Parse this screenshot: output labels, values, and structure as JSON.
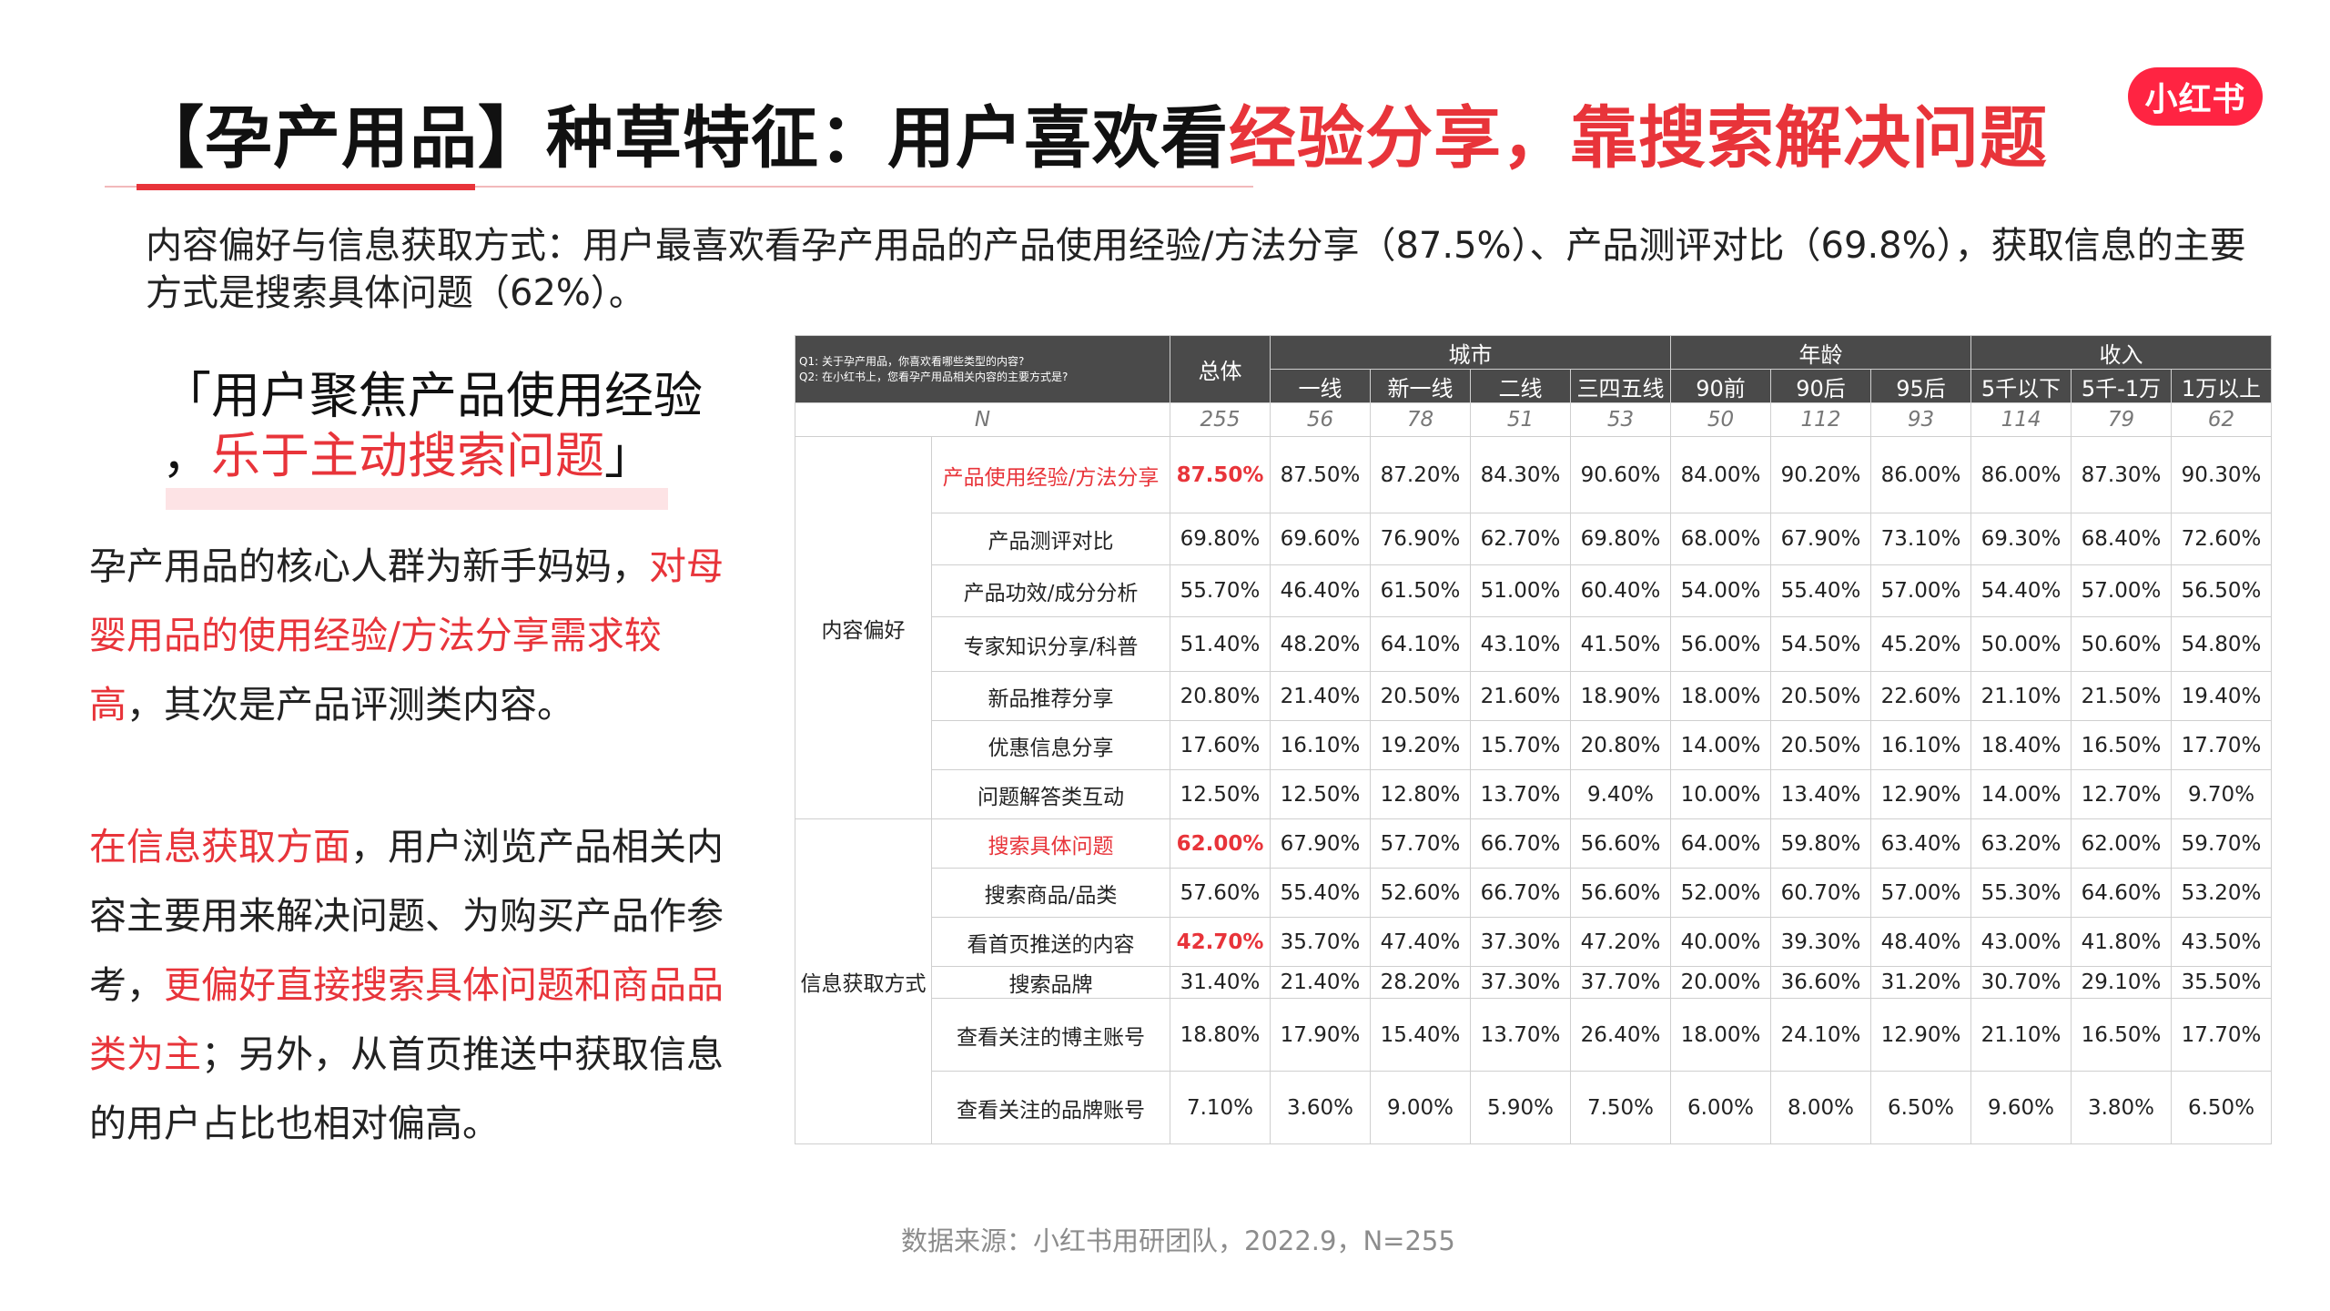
{
  "title": {
    "black": "【孕产用品】种草特征：用户喜欢看",
    "red": "经验分享，靠搜索解决问题"
  },
  "logo": "小红书",
  "summary": "内容偏好与信息获取方式：用户最喜欢看孕产用品的产品使用经验/方法分享（87.5%）、产品测评对比（69.8%），获取信息的主要方式是搜索具体问题（62%）。",
  "quote": {
    "open": "「用户聚焦产品使用经验",
    "comma": "，",
    "red": "乐于主动搜索问题",
    "close": "」"
  },
  "para1": {
    "a": "孕产用品的核心人群为新手妈妈，",
    "b": "对母婴用品的使用经验/方法分享需求较高",
    "c": "，其次是产品评测类内容。"
  },
  "para2": {
    "a": "在信息获取方面",
    "b": "，用户浏览产品相关内容主要用来解决问题、为购买产品作参考，",
    "c": "更偏好直接搜索具体问题和商品品类为主",
    "d": "；另外，从首页推送中获取信息的用户占比也相对偏高。"
  },
  "table": {
    "q1": "Q1: 关于孕产用品，你喜欢看哪些类型的内容?",
    "q2": "Q2: 在小红书上，您看孕产用品相关内容的主要方式是?",
    "total_label": "总体",
    "groups": [
      {
        "label": "城市",
        "cols": [
          "一线",
          "新一线",
          "二线",
          "三四五线"
        ]
      },
      {
        "label": "年龄",
        "cols": [
          "90前",
          "90后",
          "95后"
        ]
      },
      {
        "label": "收入",
        "cols": [
          "5千以下",
          "5千-1万",
          "1万以上"
        ]
      }
    ],
    "n_label": "N",
    "n_values": [
      "255",
      "56",
      "78",
      "51",
      "53",
      "50",
      "112",
      "93",
      "114",
      "79",
      "62"
    ],
    "categories": [
      {
        "label": "内容偏好",
        "rows": [
          {
            "item": "产品使用经验/方法分享",
            "highlight": true,
            "values": [
              "87.50%",
              "87.50%",
              "87.20%",
              "84.30%",
              "90.60%",
              "84.00%",
              "90.20%",
              "86.00%",
              "86.00%",
              "87.30%",
              "90.30%"
            ]
          },
          {
            "item": "产品测评对比",
            "highlight": false,
            "values": [
              "69.80%",
              "69.60%",
              "76.90%",
              "62.70%",
              "69.80%",
              "68.00%",
              "67.90%",
              "73.10%",
              "69.30%",
              "68.40%",
              "72.60%"
            ]
          },
          {
            "item": "产品功效/成分分析",
            "highlight": false,
            "values": [
              "55.70%",
              "46.40%",
              "61.50%",
              "51.00%",
              "60.40%",
              "54.00%",
              "55.40%",
              "57.00%",
              "54.40%",
              "57.00%",
              "56.50%"
            ]
          },
          {
            "item": "专家知识分享/科普",
            "highlight": false,
            "values": [
              "51.40%",
              "48.20%",
              "64.10%",
              "43.10%",
              "41.50%",
              "56.00%",
              "54.50%",
              "45.20%",
              "50.00%",
              "50.60%",
              "54.80%"
            ]
          },
          {
            "item": "新品推荐分享",
            "highlight": false,
            "values": [
              "20.80%",
              "21.40%",
              "20.50%",
              "21.60%",
              "18.90%",
              "18.00%",
              "20.50%",
              "22.60%",
              "21.10%",
              "21.50%",
              "19.40%"
            ]
          },
          {
            "item": "优惠信息分享",
            "highlight": false,
            "values": [
              "17.60%",
              "16.10%",
              "19.20%",
              "15.70%",
              "20.80%",
              "14.00%",
              "20.50%",
              "16.10%",
              "18.40%",
              "16.50%",
              "17.70%"
            ]
          },
          {
            "item": "问题解答类互动",
            "highlight": false,
            "values": [
              "12.50%",
              "12.50%",
              "12.80%",
              "13.70%",
              "9.40%",
              "10.00%",
              "13.40%",
              "12.90%",
              "14.00%",
              "12.70%",
              "9.70%"
            ]
          }
        ]
      },
      {
        "label": "信息获取方式",
        "rows": [
          {
            "item": "搜索具体问题",
            "highlight": true,
            "values": [
              "62.00%",
              "67.90%",
              "57.70%",
              "66.70%",
              "56.60%",
              "64.00%",
              "59.80%",
              "63.40%",
              "63.20%",
              "62.00%",
              "59.70%"
            ]
          },
          {
            "item": "搜索商品/品类",
            "highlight": false,
            "values": [
              "57.60%",
              "55.40%",
              "52.60%",
              "66.70%",
              "56.60%",
              "52.00%",
              "60.70%",
              "57.00%",
              "55.30%",
              "64.60%",
              "53.20%"
            ]
          },
          {
            "item": "看首页推送的内容",
            "highlight": false,
            "total_red": true,
            "values": [
              "42.70%",
              "35.70%",
              "47.40%",
              "37.30%",
              "47.20%",
              "40.00%",
              "39.30%",
              "48.40%",
              "43.00%",
              "41.80%",
              "43.50%"
            ]
          },
          {
            "item": "搜索品牌",
            "highlight": false,
            "values": [
              "31.40%",
              "21.40%",
              "28.20%",
              "37.30%",
              "37.70%",
              "20.00%",
              "36.60%",
              "31.20%",
              "30.70%",
              "29.10%",
              "35.50%"
            ]
          },
          {
            "item": "查看关注的博主账号",
            "highlight": false,
            "values": [
              "18.80%",
              "17.90%",
              "15.40%",
              "13.70%",
              "26.40%",
              "18.00%",
              "24.10%",
              "12.90%",
              "21.10%",
              "16.50%",
              "17.70%"
            ]
          },
          {
            "item": "查看关注的品牌账号",
            "highlight": false,
            "values": [
              "7.10%",
              "3.60%",
              "9.00%",
              "5.90%",
              "7.50%",
              "6.00%",
              "8.00%",
              "6.50%",
              "9.60%",
              "3.80%",
              "6.50%"
            ]
          }
        ]
      }
    ]
  },
  "source": "数据来源：小红书用研团队，2022.9，N=255"
}
